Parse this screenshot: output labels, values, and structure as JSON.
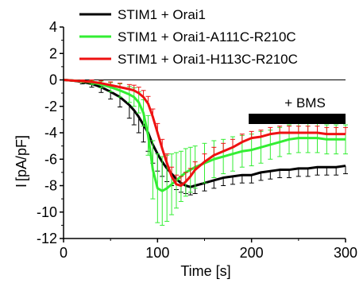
{
  "chart_data": {
    "type": "line",
    "title": "",
    "xlabel": "Time [s]",
    "ylabel_main": "I",
    "ylabel_sub": "[pA/pF]",
    "xlim": [
      0,
      300
    ],
    "ylim": [
      -12,
      4
    ],
    "x_ticks": [
      0,
      100,
      200,
      300
    ],
    "y_ticks": [
      4,
      2,
      0,
      -2,
      -4,
      -6,
      -8,
      -10,
      -12
    ],
    "grid": false,
    "legend_position": "top",
    "reference_line_y": 0,
    "annotation": {
      "label": "+ BMS",
      "x_start": 197,
      "x_end": 300
    },
    "series": [
      {
        "name": "STIM1 + Orai1",
        "color": "#000000",
        "x": [
          0,
          10,
          20,
          30,
          40,
          50,
          60,
          70,
          75,
          80,
          85,
          90,
          95,
          100,
          105,
          110,
          115,
          120,
          125,
          130,
          135,
          140,
          150,
          160,
          170,
          180,
          190,
          200,
          210,
          220,
          230,
          240,
          250,
          260,
          270,
          280,
          290,
          300
        ],
        "y": [
          0,
          -0.05,
          -0.15,
          -0.3,
          -0.55,
          -0.9,
          -1.3,
          -1.9,
          -2.3,
          -2.8,
          -3.4,
          -4.0,
          -4.9,
          -5.6,
          -6.2,
          -6.7,
          -7.1,
          -7.5,
          -7.8,
          -8.0,
          -8.1,
          -8.0,
          -7.8,
          -7.6,
          -7.4,
          -7.3,
          -7.2,
          -7.2,
          -7.0,
          -6.9,
          -6.8,
          -6.8,
          -6.7,
          -6.7,
          -6.6,
          -6.6,
          -6.6,
          -6.5
        ],
        "err": [
          0,
          0.05,
          0.15,
          0.25,
          0.4,
          0.55,
          0.75,
          1.0,
          1.1,
          1.2,
          1.3,
          1.4,
          1.4,
          1.3,
          1.1,
          1.0,
          0.9,
          0.8,
          0.7,
          0.6,
          0.6,
          0.6,
          0.6,
          0.6,
          0.6,
          0.6,
          0.6,
          0.6,
          0.6,
          0.6,
          0.6,
          0.6,
          0.6,
          0.6,
          0.6,
          0.6,
          0.6,
          0.6
        ]
      },
      {
        "name": "STIM1 + Orai1-A111C-R210C",
        "color": "#33ee33",
        "x": [
          0,
          10,
          20,
          30,
          40,
          50,
          60,
          70,
          75,
          80,
          85,
          90,
          95,
          100,
          105,
          110,
          115,
          120,
          125,
          130,
          135,
          140,
          150,
          160,
          170,
          180,
          190,
          200,
          210,
          220,
          230,
          240,
          250,
          260,
          270,
          280,
          290,
          300
        ],
        "y": [
          0,
          -0.05,
          -0.1,
          -0.2,
          -0.35,
          -0.55,
          -0.8,
          -1.1,
          -1.3,
          -1.7,
          -2.5,
          -4.2,
          -6.8,
          -8.2,
          -8.4,
          -8.2,
          -7.9,
          -7.6,
          -7.3,
          -7.0,
          -6.8,
          -6.6,
          -6.3,
          -6.0,
          -5.8,
          -5.6,
          -5.4,
          -5.3,
          -5.1,
          -4.9,
          -4.7,
          -4.5,
          -4.4,
          -4.4,
          -4.4,
          -4.5,
          -4.5,
          -4.5
        ],
        "err": [
          0,
          0.05,
          0.1,
          0.15,
          0.25,
          0.35,
          0.5,
          0.6,
          0.7,
          0.8,
          1.0,
          1.5,
          2.2,
          2.6,
          2.6,
          2.5,
          2.3,
          2.1,
          1.9,
          1.8,
          1.7,
          1.6,
          1.5,
          1.4,
          1.3,
          1.3,
          1.2,
          1.2,
          1.2,
          1.1,
          1.1,
          1.1,
          1.1,
          1.1,
          1.1,
          1.1,
          1.1,
          1.1
        ]
      },
      {
        "name": "STIM1 + Orai1-H113C-R210C",
        "color": "#ee1111",
        "x": [
          0,
          10,
          20,
          30,
          40,
          50,
          60,
          70,
          75,
          80,
          85,
          90,
          95,
          100,
          105,
          110,
          115,
          120,
          125,
          130,
          135,
          140,
          150,
          160,
          170,
          180,
          190,
          200,
          210,
          220,
          230,
          240,
          250,
          260,
          270,
          280,
          290,
          300
        ],
        "y": [
          0,
          -0.05,
          -0.1,
          -0.15,
          -0.25,
          -0.4,
          -0.55,
          -0.7,
          -0.8,
          -1.0,
          -1.3,
          -1.8,
          -2.8,
          -4.0,
          -5.2,
          -6.3,
          -7.3,
          -7.9,
          -8.0,
          -7.7,
          -7.3,
          -6.8,
          -6.2,
          -5.7,
          -5.4,
          -5.1,
          -4.7,
          -4.4,
          -4.3,
          -4.1,
          -4.0,
          -4.0,
          -4.0,
          -4.0,
          -4.0,
          -4.1,
          -4.1,
          -4.1
        ],
        "err": [
          0,
          0.05,
          0.1,
          0.15,
          0.2,
          0.25,
          0.3,
          0.35,
          0.4,
          0.45,
          0.5,
          0.55,
          0.6,
          0.7,
          0.7,
          0.7,
          0.7,
          0.7,
          0.7,
          0.7,
          0.6,
          0.6,
          0.6,
          0.6,
          0.6,
          0.6,
          0.6,
          0.5,
          0.5,
          0.5,
          0.5,
          0.5,
          0.5,
          0.5,
          0.5,
          0.5,
          0.5,
          0.5
        ]
      }
    ]
  }
}
